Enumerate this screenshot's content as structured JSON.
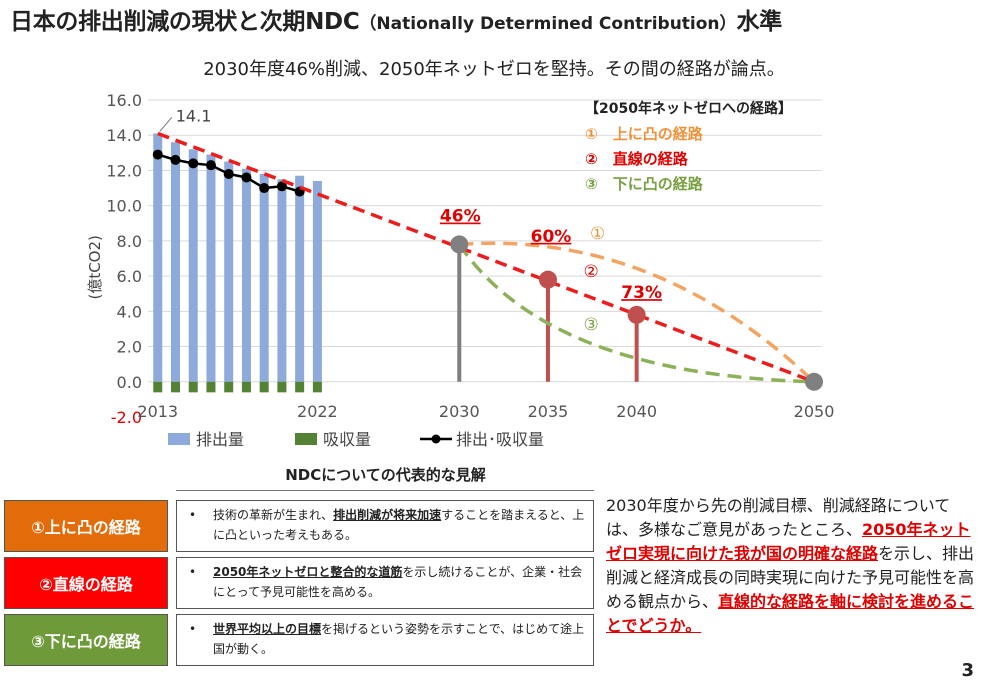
{
  "title": "日本の排出削減の現状と次期NDC",
  "title_paren": "（Nationally Determined Contribution）",
  "title_tail": "水準",
  "subtitle": "2030年度46%削減、2050年ネットゼロを堅持。その間の経路が論点。",
  "chart_data": {
    "type": "bar",
    "ylabel": "(億tCO2)",
    "ylim": [
      -2.0,
      16.0
    ],
    "y_ticks": [
      "16.0",
      "14.0",
      "12.0",
      "10.0",
      "8.0",
      "6.0",
      "4.0",
      "2.0",
      "0.0",
      "-2.0"
    ],
    "x_labels": [
      "2013",
      "2022",
      "2030",
      "2035",
      "2040",
      "2050"
    ],
    "years": [
      2013,
      2014,
      2015,
      2016,
      2017,
      2018,
      2019,
      2020,
      2021,
      2022
    ],
    "emissions": [
      14.1,
      13.6,
      13.2,
      12.9,
      12.5,
      12.1,
      11.8,
      11.5,
      11.7,
      11.4
    ],
    "absorption": [
      -0.6,
      -0.6,
      -0.6,
      -0.6,
      -0.6,
      -0.6,
      -0.6,
      -0.6,
      -0.6,
      -0.6
    ],
    "net": [
      12.9,
      12.6,
      12.4,
      12.3,
      11.8,
      11.6,
      11.0,
      11.1,
      10.8
    ],
    "net_years": [
      2013,
      2014,
      2015,
      2016,
      2017,
      2018,
      2019,
      2020,
      2021
    ],
    "first_value_label": "14.1",
    "linear_path": {
      "from": [
        2013,
        14.1
      ],
      "to": [
        2050,
        0.0
      ]
    },
    "milestones": [
      {
        "year": 2030,
        "value": 7.8,
        "label": "46%"
      },
      {
        "year": 2035,
        "value": 5.8,
        "label": "60%"
      },
      {
        "year": 2040,
        "value": 3.8,
        "label": "73%"
      }
    ],
    "end_point": {
      "year": 2050,
      "value": 0.0
    },
    "legend_box": {
      "title": "【2050年ネットゼロへの経路】",
      "items": [
        {
          "label": "①　上に凸の経路",
          "color": "#f0923c"
        },
        {
          "label": "②　直線の経路",
          "color": "#e00000"
        },
        {
          "label": "③　下に凸の経路",
          "color": "#77a040"
        }
      ]
    },
    "curve_markers": [
      "①",
      "②",
      "③"
    ],
    "legend": [
      {
        "label": "排出量",
        "color": "#8eaadb"
      },
      {
        "label": "吸収量",
        "color": "#548235"
      },
      {
        "label": "排出･吸収量",
        "color": "#000000"
      }
    ],
    "grid": true
  },
  "ndc": {
    "heading": "NDCについての代表的な見解",
    "views": [
      {
        "label": "①上に凸の経路",
        "color": "#e36c0a",
        "pre": "技術の革新が生まれ、",
        "bold": "排出削減が将来加速",
        "post": "することを踏まえると、上に凸といった考えもある。"
      },
      {
        "label": "②直線の経路",
        "color": "#ff0000",
        "pre": "",
        "bold": "2050年ネットゼロと整合的な道筋",
        "post": "を示し続けることが、企業・社会にとって予見可能性を高める。"
      },
      {
        "label": "③下に凸の経路",
        "color": "#6f9a3a",
        "pre": "",
        "bold": "世界平均以上の目標",
        "post": "を掲げるという姿勢を示すことで、はじめて途上国が動く。"
      }
    ],
    "bullet": "•"
  },
  "note": {
    "p1": "2030年度から先の削減目標、削減経路については、多様なご意見があったところ、",
    "b1": "2050年ネットゼロ実現に向けた我が国の明確な経路",
    "p2": "を示し、排出削減と経済成長の同時実現に向けた予見可能性を高める観点から、",
    "b2": "直線的な経路を軸に検討を進めることでどうか。"
  },
  "page_number": "3"
}
